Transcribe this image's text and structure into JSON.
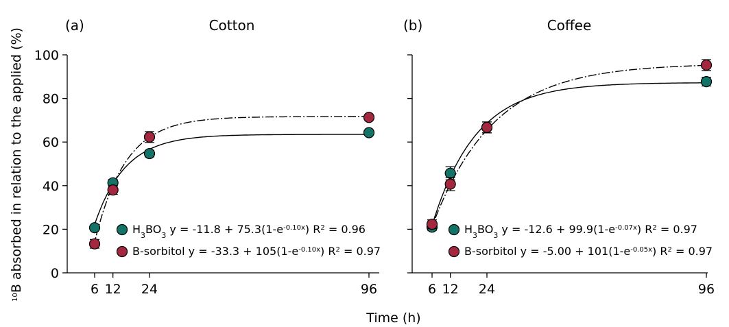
{
  "chart_data": {
    "type": "scatter",
    "ylabel_sup": "10",
    "ylabel": "B absorbed in relation to the applied (%)",
    "xlabel": "Time (h)",
    "ylim": [
      0,
      100
    ],
    "yticks": [
      0,
      20,
      40,
      60,
      80,
      100
    ],
    "xticks": [
      6,
      12,
      24,
      96
    ],
    "xlim": [
      0,
      96
    ],
    "panels": [
      {
        "label": "(a)",
        "title": "Cotton",
        "series": [
          {
            "name_main": "H",
            "name_sub": "3",
            "name_rest": "BO",
            "name_sub2": "3",
            "color": "#137367",
            "x": [
              6,
              12,
              24,
              96
            ],
            "y": [
              20.7,
              41.3,
              54.7,
              64.3
            ],
            "err": [
              1.0,
              1.5,
              1.5,
              0.8
            ],
            "eq": {
              "a": -11.8,
              "b": 75.3,
              "k": 0.1,
              "dash": "solid"
            },
            "eq_text_pre": " y = -11.8 + 75.3(1-e",
            "eq_exp": "-0.10x",
            "eq_text_post": ") R",
            "r2_sup": "2",
            "r2_text": " = 0.96"
          },
          {
            "name_main": "B-sorbitol",
            "color": "#A3283F",
            "x": [
              6,
              12,
              24,
              96
            ],
            "y": [
              13.3,
              38.0,
              62.3,
              71.3
            ],
            "err": [
              2.0,
              2.0,
              2.5,
              1.0
            ],
            "eq": {
              "a": -33.3,
              "b": 105,
              "k": 0.1,
              "dash": "dash"
            },
            "eq_text_pre": " y = -33.3 + 105(1-e",
            "eq_exp": "-0.10x",
            "eq_text_post": ") R",
            "r2_sup": "2",
            "r2_text": " = 0.97"
          }
        ]
      },
      {
        "label": "(b)",
        "title": "Coffee",
        "series": [
          {
            "name_main": "H",
            "name_sub": "3",
            "name_rest": "BO",
            "name_sub2": "3",
            "color": "#137367",
            "x": [
              6,
              12,
              24,
              96
            ],
            "y": [
              21.0,
              45.7,
              66.7,
              87.7
            ],
            "err": [
              1.5,
              3.0,
              2.5,
              2.0
            ],
            "eq": {
              "a": -12.6,
              "b": 99.9,
              "k": 0.07,
              "dash": "solid"
            },
            "eq_text_pre": " y = -12.6 + 99.9(1-e",
            "eq_exp": "-0.07x",
            "eq_text_post": ") R",
            "r2_sup": "2",
            "r2_text": " = 0.97"
          },
          {
            "name_main": "B-sorbitol",
            "color": "#A3283F",
            "x": [
              6,
              12,
              24,
              96
            ],
            "y": [
              22.3,
              40.7,
              66.7,
              95.3
            ],
            "err": [
              2.0,
              3.0,
              2.5,
              2.5
            ],
            "eq": {
              "a": -5.0,
              "b": 101,
              "k": 0.05,
              "dash": "dash"
            },
            "eq_text_pre": " y = -5.00 + 101(1-e",
            "eq_exp": "-0.05x",
            "eq_text_post": ") R",
            "r2_sup": "2",
            "r2_text": " = 0.97"
          }
        ]
      }
    ]
  }
}
